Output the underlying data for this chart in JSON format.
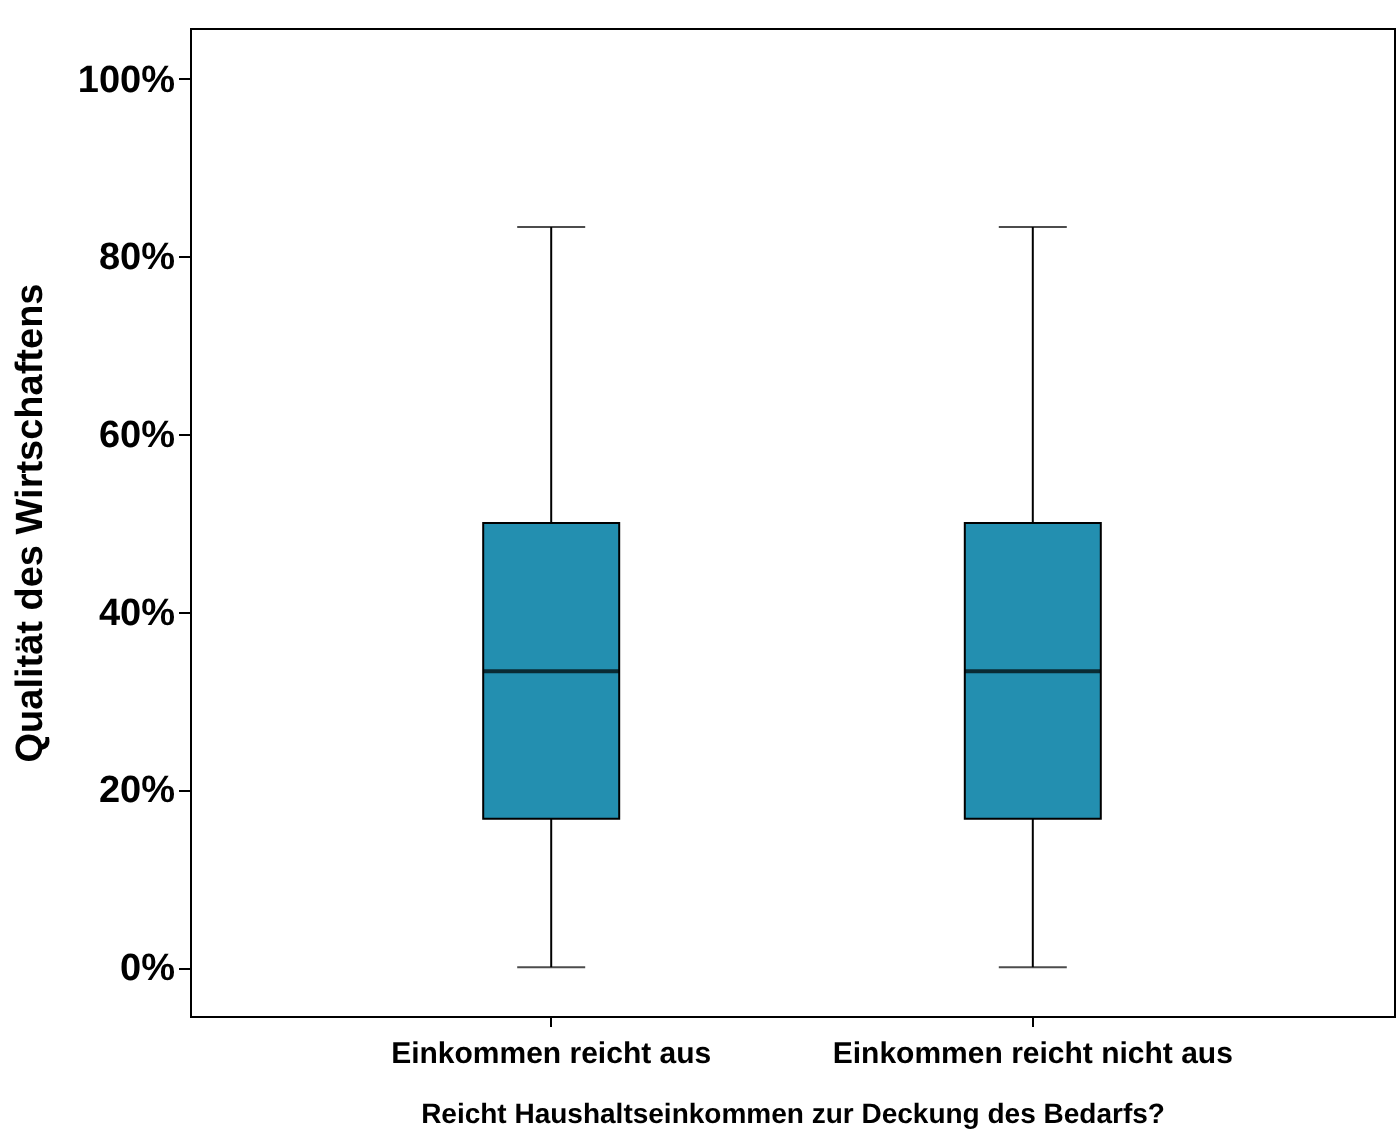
{
  "chart_data": {
    "type": "box",
    "xlabel": "Reicht Haushaltseinkommen zur Deckung des Bedarfs?",
    "ylabel": "Qualität des Wirtschaftens",
    "categories": [
      "Einkommen reicht aus",
      "Einkommen reicht nicht aus"
    ],
    "boxes": [
      {
        "low": 0,
        "q1": 16.7,
        "median": 33.3,
        "q3": 50,
        "high": 83.3
      },
      {
        "low": 0,
        "q1": 16.7,
        "median": 33.3,
        "q3": 50,
        "high": 83.3
      }
    ],
    "color": "#238fb0",
    "ylim": [
      -5.5,
      105.7
    ],
    "yticks": [
      {
        "value": 0,
        "label": "0%"
      },
      {
        "value": 20,
        "label": "20%"
      },
      {
        "value": 40,
        "label": "40%"
      },
      {
        "value": 60,
        "label": "60%"
      },
      {
        "value": 80,
        "label": "80%"
      },
      {
        "value": 100,
        "label": "100%"
      }
    ],
    "grid": false
  }
}
